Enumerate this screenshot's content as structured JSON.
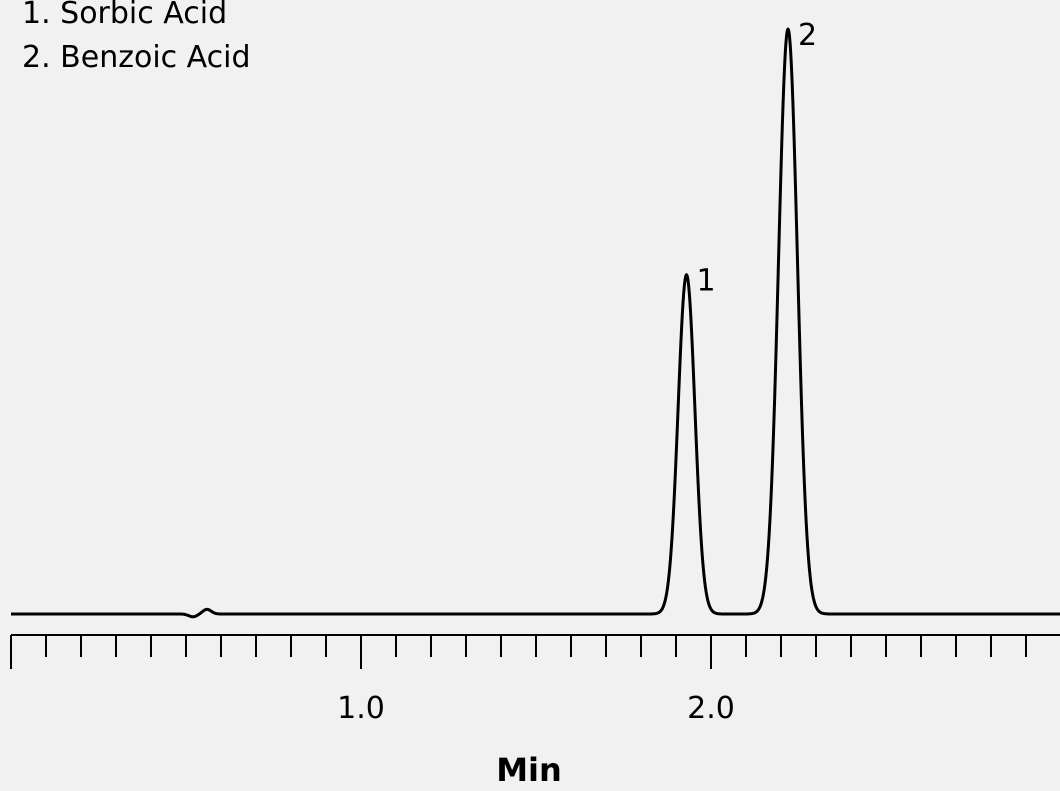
{
  "chart_data": {
    "type": "line",
    "title": "",
    "xlabel": "Min",
    "ylabel": "",
    "xlim": [
      0,
      3.0
    ],
    "x_major_ticks": [
      1.0,
      2.0
    ],
    "x_major_tick_labels": [
      "1.0",
      "2.0"
    ],
    "x_minor_tick_step": 0.1,
    "grid": false,
    "legend": {
      "placement": "top-left",
      "entries": [
        "1. Sorbic Acid",
        "2. Benzoic Acid"
      ]
    },
    "baseline": 0,
    "disturbance": {
      "x": 0.56,
      "height": 0.8
    },
    "peaks": [
      {
        "label": "1",
        "compound": "Sorbic Acid",
        "retention_time": 1.93,
        "height": 58,
        "width_sigma": 0.024
      },
      {
        "label": "2",
        "compound": "Benzoic Acid",
        "retention_time": 2.22,
        "height": 100,
        "width_sigma": 0.027
      }
    ]
  }
}
